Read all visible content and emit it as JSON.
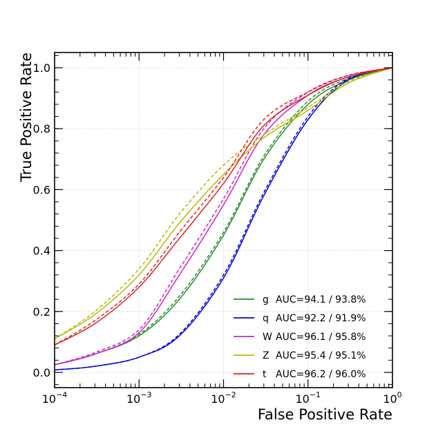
{
  "chart_data": {
    "type": "line",
    "xlabel": "False Positive Rate",
    "ylabel": "True Positive Rate",
    "x_scale": "log",
    "xlim": [
      0.0001,
      1
    ],
    "ylim": [
      -0.05,
      1.05
    ],
    "x_ticks": [
      {
        "value": 0.0001,
        "base": "10",
        "exp": "−4"
      },
      {
        "value": 0.001,
        "base": "10",
        "exp": "−3"
      },
      {
        "value": 0.01,
        "base": "10",
        "exp": "−2"
      },
      {
        "value": 0.1,
        "base": "10",
        "exp": "−1"
      },
      {
        "value": 1,
        "base": "10",
        "exp": "0"
      }
    ],
    "y_ticks": [
      {
        "value": 0.0,
        "label": "0.0"
      },
      {
        "value": 0.2,
        "label": "0.2"
      },
      {
        "value": 0.4,
        "label": "0.4"
      },
      {
        "value": 0.6,
        "label": "0.6"
      },
      {
        "value": 0.8,
        "label": "0.8"
      },
      {
        "value": 1.0,
        "label": "1.0"
      }
    ],
    "grid": true,
    "legend_position": "lower-right",
    "x_points": [
      0.0001,
      0.0003,
      0.001,
      0.003,
      0.01,
      0.03,
      0.1,
      0.3,
      1
    ],
    "series": [
      {
        "name": "g",
        "auc_label": "AUC=94.1 / 93.8%",
        "color": "#228B22",
        "solid": [
          0.025,
          0.06,
          0.12,
          0.24,
          0.45,
          0.7,
          0.88,
          0.96,
          1.0
        ],
        "dashed": [
          0.025,
          0.06,
          0.125,
          0.25,
          0.46,
          0.71,
          0.89,
          0.965,
          1.0
        ]
      },
      {
        "name": "q",
        "auc_label": "AUC=92.2 / 91.9%",
        "color": "#0000DD",
        "solid": [
          0.008,
          0.02,
          0.05,
          0.12,
          0.31,
          0.58,
          0.83,
          0.96,
          1.0
        ],
        "dashed": [
          0.008,
          0.02,
          0.05,
          0.125,
          0.32,
          0.59,
          0.84,
          0.965,
          1.0
        ]
      },
      {
        "name": "W",
        "auc_label": "AUC=96.1 / 95.8%",
        "color": "#CC22CC",
        "solid": [
          0.025,
          0.06,
          0.13,
          0.32,
          0.55,
          0.78,
          0.91,
          0.97,
          1.0
        ],
        "dashed": [
          0.025,
          0.065,
          0.14,
          0.34,
          0.57,
          0.8,
          0.92,
          0.975,
          1.0
        ]
      },
      {
        "name": "Z",
        "auc_label": "AUC=95.4 / 95.1%",
        "color": "#B8B800",
        "solid": [
          0.11,
          0.19,
          0.32,
          0.49,
          0.65,
          0.77,
          0.86,
          0.95,
          1.0
        ],
        "dashed": [
          0.11,
          0.2,
          0.34,
          0.52,
          0.68,
          0.78,
          0.87,
          0.955,
          1.0
        ]
      },
      {
        "name": "t",
        "auc_label": "AUC=96.2 / 96.0%",
        "color": "#E02020",
        "solid": [
          0.09,
          0.16,
          0.28,
          0.44,
          0.62,
          0.81,
          0.91,
          0.97,
          1.0
        ],
        "dashed": [
          0.09,
          0.17,
          0.29,
          0.46,
          0.64,
          0.83,
          0.92,
          0.975,
          1.0
        ]
      }
    ]
  }
}
